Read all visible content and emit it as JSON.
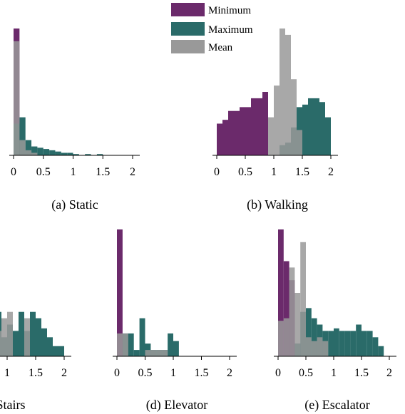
{
  "colors": {
    "Minimum": "#6b2a6b",
    "Maximum": "#2a6b69",
    "Mean": "#999999",
    "overlap": "#173c4e"
  },
  "legend": [
    {
      "label": "Minimum",
      "color": "#6b2a6b"
    },
    {
      "label": "Maximum",
      "color": "#2a6b69"
    },
    {
      "label": "Mean",
      "color": "#999999"
    }
  ],
  "chart_data": [
    {
      "type": "bar",
      "subtype": "histogram",
      "title": "(a) Static",
      "xticks": [
        "0",
        "0.5",
        "1",
        "1.5",
        "2"
      ],
      "xlim": [
        0,
        2.1
      ],
      "ylim": [
        0,
        1
      ],
      "bin_width": 0.1,
      "series": [
        {
          "name": "Minimum",
          "bins": [
            [
              0,
              1.0
            ]
          ]
        },
        {
          "name": "Maximum",
          "bins": [
            [
              0,
              0.25
            ],
            [
              0.1,
              0.3
            ],
            [
              0.2,
              0.12
            ],
            [
              0.3,
              0.07
            ],
            [
              0.4,
              0.06
            ],
            [
              0.5,
              0.05
            ],
            [
              0.6,
              0.04
            ],
            [
              0.7,
              0.03
            ],
            [
              0.8,
              0.02
            ],
            [
              0.9,
              0.02
            ],
            [
              1.0,
              0.01
            ],
            [
              1.2,
              0.01
            ],
            [
              1.4,
              0.01
            ]
          ]
        },
        {
          "name": "Mean",
          "bins": [
            [
              0,
              0.9
            ],
            [
              0.1,
              0.12
            ],
            [
              0.2,
              0.04
            ],
            [
              0.3,
              0.02
            ]
          ]
        }
      ]
    },
    {
      "type": "bar",
      "subtype": "histogram",
      "title": "(b) Walking",
      "xticks": [
        "0",
        "0.5",
        "1",
        "1.5",
        "2"
      ],
      "xlim": [
        0,
        2.1
      ],
      "ylim": [
        0,
        1
      ],
      "bin_width": 0.1,
      "series": [
        {
          "name": "Minimum",
          "bins": [
            [
              0,
              0.25
            ],
            [
              0.1,
              0.28
            ],
            [
              0.2,
              0.35
            ],
            [
              0.3,
              0.35
            ],
            [
              0.4,
              0.38
            ],
            [
              0.5,
              0.38
            ],
            [
              0.6,
              0.45
            ],
            [
              0.7,
              0.45
            ],
            [
              0.8,
              0.5
            ]
          ]
        },
        {
          "name": "Maximum",
          "bins": [
            [
              1.1,
              0.08
            ],
            [
              1.2,
              0.1
            ],
            [
              1.3,
              0.22
            ],
            [
              1.4,
              0.38
            ],
            [
              1.5,
              0.4
            ],
            [
              1.6,
              0.45
            ],
            [
              1.7,
              0.45
            ],
            [
              1.8,
              0.42
            ],
            [
              1.9,
              0.3
            ]
          ]
        },
        {
          "name": "Mean",
          "bins": [
            [
              0.9,
              0.3
            ],
            [
              1.0,
              0.55
            ],
            [
              1.1,
              1.0
            ],
            [
              1.2,
              0.95
            ],
            [
              1.3,
              0.6
            ],
            [
              1.4,
              0.2
            ]
          ]
        }
      ]
    },
    {
      "type": "bar",
      "subtype": "histogram",
      "title": "Stairs",
      "xticks": [
        "1",
        "1.5",
        "2"
      ],
      "xlim": [
        0,
        2.1
      ],
      "ylim": [
        0,
        1
      ],
      "bin_width": 0.1,
      "series": [
        {
          "name": "Minimum",
          "bins": []
        },
        {
          "name": "Maximum",
          "bins": [
            [
              0.8,
              0.35
            ],
            [
              0.9,
              0.15
            ],
            [
              1.0,
              0.25
            ],
            [
              1.1,
              0.2
            ],
            [
              1.2,
              0.35
            ],
            [
              1.3,
              0.2
            ],
            [
              1.4,
              0.35
            ],
            [
              1.5,
              0.3
            ],
            [
              1.6,
              0.22
            ],
            [
              1.7,
              0.15
            ],
            [
              1.8,
              0.08
            ],
            [
              1.9,
              0.08
            ]
          ]
        },
        {
          "name": "Mean",
          "bins": [
            [
              0.8,
              0.2
            ],
            [
              0.9,
              0.3
            ],
            [
              1.0,
              0.35
            ],
            [
              1.3,
              0.3
            ]
          ]
        }
      ]
    },
    {
      "type": "bar",
      "subtype": "histogram",
      "title": "(d) Elevator",
      "xticks": [
        "0",
        "0.5",
        "1",
        "1.5",
        "2"
      ],
      "xlim": [
        0,
        2.1
      ],
      "ylim": [
        0,
        1
      ],
      "bin_width": 0.1,
      "series": [
        {
          "name": "Minimum",
          "bins": [
            [
              0,
              1.0
            ],
            [
              0.1,
              0.18
            ]
          ]
        },
        {
          "name": "Maximum",
          "bins": [
            [
              0.1,
              0.18
            ],
            [
              0.2,
              0.18
            ],
            [
              0.3,
              0.05
            ],
            [
              0.4,
              0.3
            ],
            [
              0.5,
              0.1
            ],
            [
              0.6,
              0.05
            ],
            [
              0.7,
              0.05
            ],
            [
              0.8,
              0.05
            ],
            [
              0.9,
              0.18
            ],
            [
              1.0,
              0.12
            ]
          ]
        },
        {
          "name": "Mean",
          "bins": [
            [
              0,
              0.18
            ],
            [
              0.1,
              0.18
            ],
            [
              0.5,
              0.05
            ],
            [
              0.6,
              0.05
            ],
            [
              0.7,
              0.05
            ],
            [
              0.8,
              0.05
            ]
          ]
        }
      ]
    },
    {
      "type": "bar",
      "subtype": "histogram",
      "title": "(e) Escalator",
      "xticks": [
        "0",
        "0.5",
        "1",
        "1.5",
        "2"
      ],
      "xlim": [
        0,
        2.1
      ],
      "ylim": [
        0,
        1
      ],
      "bin_width": 0.1,
      "series": [
        {
          "name": "Minimum",
          "bins": [
            [
              0,
              1.0
            ],
            [
              0.1,
              0.75
            ],
            [
              0.2,
              0.6
            ],
            [
              0.3,
              0.1
            ]
          ]
        },
        {
          "name": "Maximum",
          "bins": [
            [
              0.3,
              0.1
            ],
            [
              0.4,
              0.35
            ],
            [
              0.5,
              0.38
            ],
            [
              0.6,
              0.3
            ],
            [
              0.7,
              0.25
            ],
            [
              0.8,
              0.2
            ],
            [
              0.9,
              0.2
            ],
            [
              1.0,
              0.22
            ],
            [
              1.1,
              0.2
            ],
            [
              1.2,
              0.2
            ],
            [
              1.3,
              0.2
            ],
            [
              1.4,
              0.25
            ],
            [
              1.5,
              0.2
            ],
            [
              1.6,
              0.2
            ],
            [
              1.7,
              0.15
            ],
            [
              1.8,
              0.08
            ]
          ]
        },
        {
          "name": "Mean",
          "bins": [
            [
              0,
              0.28
            ],
            [
              0.1,
              0.3
            ],
            [
              0.2,
              0.7
            ],
            [
              0.3,
              0.5
            ],
            [
              0.4,
              0.9
            ],
            [
              0.5,
              0.15
            ],
            [
              0.6,
              0.12
            ],
            [
              0.7,
              0.15
            ],
            [
              0.8,
              0.12
            ]
          ]
        }
      ]
    }
  ]
}
